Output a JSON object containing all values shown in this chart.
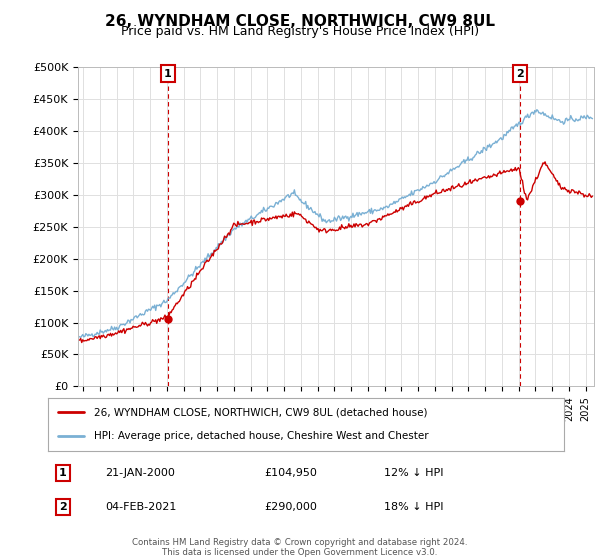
{
  "title": "26, WYNDHAM CLOSE, NORTHWICH, CW9 8UL",
  "subtitle": "Price paid vs. HM Land Registry's House Price Index (HPI)",
  "ylabel_ticks": [
    "£0",
    "£50K",
    "£100K",
    "£150K",
    "£200K",
    "£250K",
    "£300K",
    "£350K",
    "£400K",
    "£450K",
    "£500K"
  ],
  "ytick_values": [
    0,
    50000,
    100000,
    150000,
    200000,
    250000,
    300000,
    350000,
    400000,
    450000,
    500000
  ],
  "ylim": [
    0,
    500000
  ],
  "xlim_start": 1994.7,
  "xlim_end": 2025.5,
  "hpi_color": "#7ab0d4",
  "sale_color": "#cc0000",
  "sale1_x": 2000.05,
  "sale1_y": 104950,
  "sale2_x": 2021.09,
  "sale2_y": 290000,
  "legend_label1": "26, WYNDHAM CLOSE, NORTHWICH, CW9 8UL (detached house)",
  "legend_label2": "HPI: Average price, detached house, Cheshire West and Chester",
  "annotation1_label": "1",
  "annotation1_date": "21-JAN-2000",
  "annotation1_price": "£104,950",
  "annotation1_hpi": "12% ↓ HPI",
  "annotation2_label": "2",
  "annotation2_date": "04-FEB-2021",
  "annotation2_price": "£290,000",
  "annotation2_hpi": "18% ↓ HPI",
  "footer": "Contains HM Land Registry data © Crown copyright and database right 2024.\nThis data is licensed under the Open Government Licence v3.0.",
  "background_color": "#ffffff",
  "grid_color": "#e0e0e0",
  "vline_color": "#cc0000",
  "title_fontsize": 11,
  "subtitle_fontsize": 9
}
